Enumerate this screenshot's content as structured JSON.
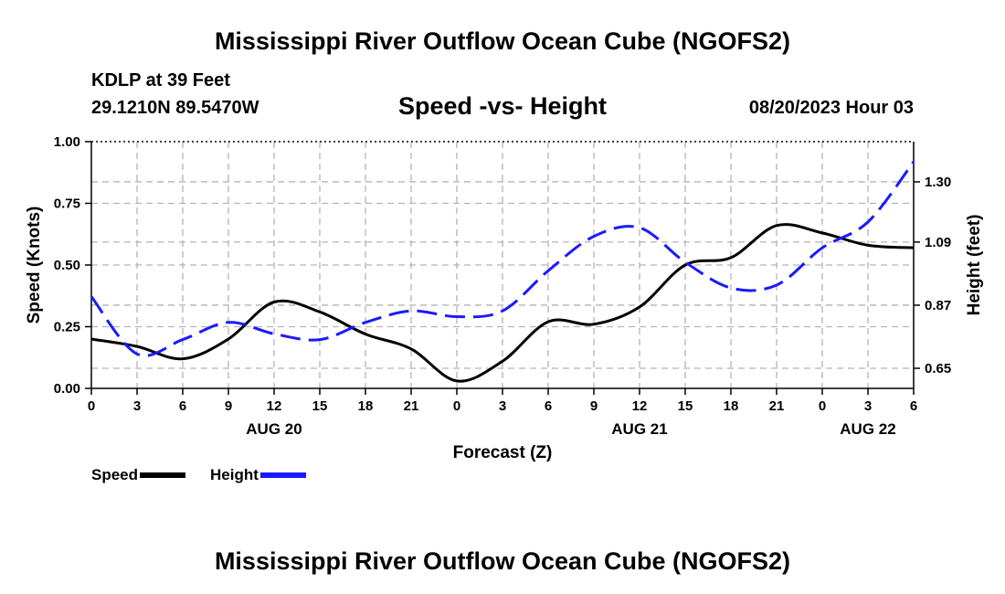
{
  "page": {
    "title": "Mississippi River Outflow Ocean Cube (NGOFS2)",
    "title_repeat": "Mississippi River Outflow Ocean Cube (NGOFS2)",
    "station": "KDLP at 39 Feet",
    "coords": "29.1210N  89.5470W",
    "subtitle": "Speed -vs- Height",
    "datetime": "08/20/2023 Hour 03"
  },
  "legend": {
    "speed_label": "Speed",
    "height_label": "Height"
  },
  "colors": {
    "speed": "#000000",
    "height": "#1a1aff",
    "grid": "#b4b4b4"
  },
  "chart_data": {
    "type": "line",
    "xlabel": "Forecast (Z)",
    "ylabel": "Speed (Knots)",
    "y2label": "Height (feet)",
    "x_range": [
      0,
      54
    ],
    "x_ticks": [
      0,
      3,
      6,
      9,
      12,
      15,
      18,
      21,
      24,
      27,
      30,
      33,
      36,
      39,
      42,
      45,
      48,
      51,
      54
    ],
    "x_tick_labels": [
      "0",
      "3",
      "6",
      "9",
      "12",
      "15",
      "18",
      "21",
      "0",
      "3",
      "6",
      "9",
      "12",
      "15",
      "18",
      "21",
      "0",
      "3",
      "6"
    ],
    "date_labels": [
      {
        "x": 12,
        "label": "AUG 20"
      },
      {
        "x": 36,
        "label": "AUG 21"
      },
      {
        "x": 51,
        "label": "AUG 22"
      }
    ],
    "ylim": [
      0,
      1
    ],
    "y_ticks": [
      0,
      0.25,
      0.5,
      0.75,
      1
    ],
    "y_tick_labels": [
      "0.00",
      "0.25",
      "0.50",
      "0.75",
      "1.00"
    ],
    "y2lim": [
      0.58,
      1.44
    ],
    "y2_ticks": [
      0.65,
      0.87,
      1.09,
      1.3
    ],
    "y2_tick_labels": [
      "0.65",
      "0.87",
      "1.09",
      "1.30"
    ],
    "series": [
      {
        "name": "Speed",
        "axis": "left",
        "x": [
          0,
          3,
          6,
          9,
          12,
          15,
          18,
          21,
          24,
          27,
          30,
          33,
          36,
          39,
          42,
          45,
          48,
          51,
          54
        ],
        "values": [
          0.2,
          0.17,
          0.12,
          0.2,
          0.35,
          0.31,
          0.22,
          0.16,
          0.03,
          0.11,
          0.27,
          0.26,
          0.33,
          0.5,
          0.53,
          0.66,
          0.63,
          0.58,
          0.57
        ]
      },
      {
        "name": "Height",
        "axis": "right",
        "x": [
          0,
          3,
          6,
          9,
          12,
          15,
          18,
          21,
          24,
          27,
          30,
          33,
          36,
          39,
          42,
          45,
          48,
          51,
          54
        ],
        "values": [
          0.9,
          0.7,
          0.75,
          0.81,
          0.77,
          0.75,
          0.81,
          0.85,
          0.83,
          0.85,
          0.99,
          1.11,
          1.14,
          1.02,
          0.93,
          0.94,
          1.07,
          1.16,
          1.37
        ]
      }
    ]
  }
}
